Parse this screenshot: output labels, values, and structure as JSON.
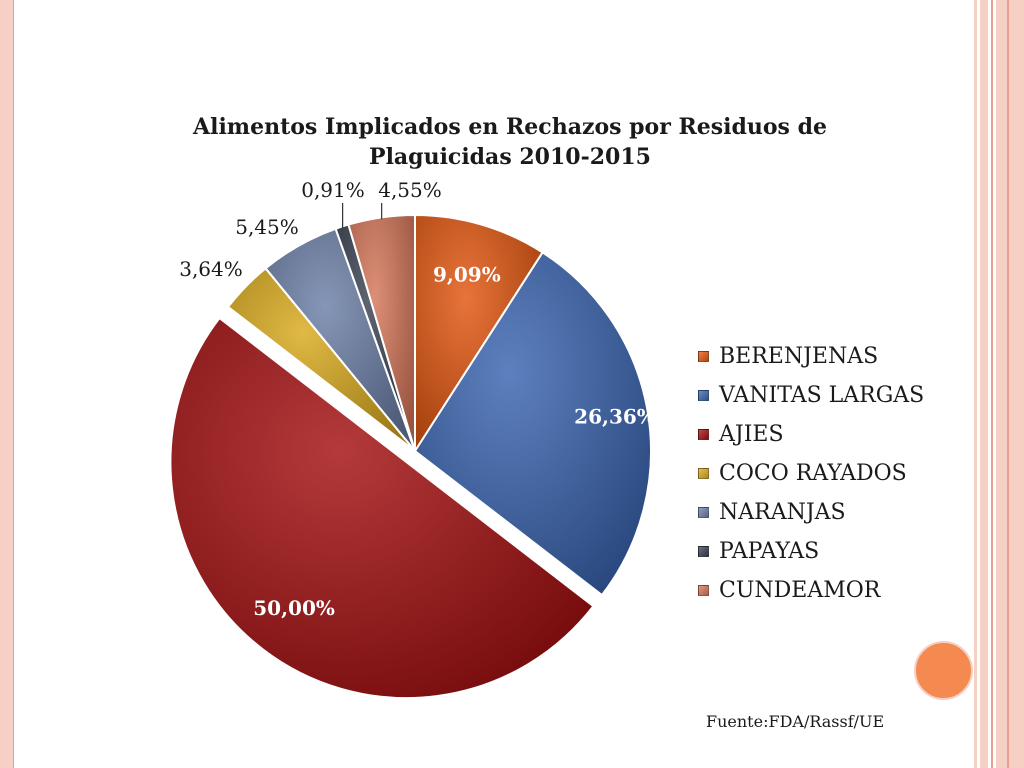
{
  "chart_data": {
    "type": "pie",
    "title": "Alimentos Implicados en  Rechazos por Residuos de Plaguicidas 2010-2015",
    "title_lines": [
      "Alimentos Implicados en  Rechazos por Residuos de",
      "Plaguicidas 2010-2015"
    ],
    "slices": [
      {
        "label": "BERENJENAS",
        "value": 9.09,
        "display": "9,09%",
        "color": "#e2560f"
      },
      {
        "label": "VANITAS LARGAS",
        "value": 26.36,
        "display": "26,36%",
        "color": "#3a64b0"
      },
      {
        "label": "AJIES",
        "value": 50.0,
        "display": "50,00%",
        "color": "#a40f10",
        "exploded": true
      },
      {
        "label": "COCO RAYADOS",
        "value": 3.64,
        "display": "3,64%",
        "color": "#d9aa1c"
      },
      {
        "label": "NARANJAS",
        "value": 5.45,
        "display": "5,45%",
        "color": "#6b7fa6"
      },
      {
        "label": "PAPAYAS",
        "value": 0.91,
        "display": "0,91%",
        "color": "#3a4250"
      },
      {
        "label": "CUNDEAMOR",
        "value": 4.55,
        "display": "4,55%",
        "color": "#d67659"
      }
    ],
    "start_angle": "12 o'clock",
    "direction": "clockwise",
    "legend_position": "right"
  },
  "source": "Fuente:FDA/Rassf/UE",
  "colors": {
    "frame": "#f6cfc5",
    "frame_line": "#e9a18f",
    "accent_circle": "#f58a50"
  }
}
